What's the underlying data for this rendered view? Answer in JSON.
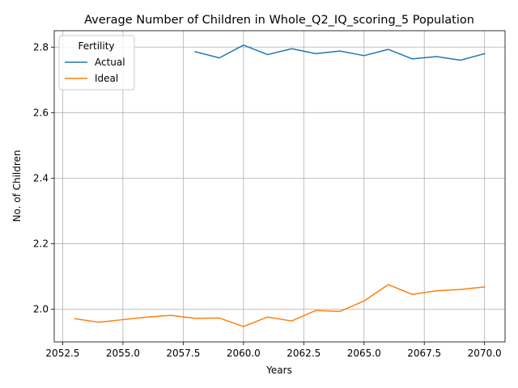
{
  "chart_data": {
    "type": "line",
    "title": "Average Number of Children in Whole_Q2_IQ_scoring_5 Population",
    "xlabel": "Years",
    "ylabel": "No. of Children",
    "xlim": [
      2052.15,
      2070.85
    ],
    "ylim": [
      1.9,
      2.85
    ],
    "xticks": [
      2052.5,
      2055.0,
      2057.5,
      2060.0,
      2062.5,
      2065.0,
      2067.5,
      2070.0
    ],
    "xtick_labels": [
      "2052.5",
      "2055.0",
      "2057.5",
      "2060.0",
      "2062.5",
      "2065.0",
      "2067.5",
      "2070.0"
    ],
    "yticks": [
      2.0,
      2.2,
      2.4,
      2.6,
      2.8
    ],
    "ytick_labels": [
      "2.0",
      "2.2",
      "2.4",
      "2.6",
      "2.8"
    ],
    "grid": true,
    "legend": {
      "title": "Fertility",
      "placement": "top-left"
    },
    "series": [
      {
        "name": "Actual",
        "color": "#1f77b4",
        "x": [
          2058,
          2059,
          2060,
          2061,
          2062,
          2063,
          2064,
          2065,
          2066,
          2067,
          2068,
          2069,
          2070
        ],
        "y": [
          2.786,
          2.767,
          2.806,
          2.777,
          2.795,
          2.78,
          2.788,
          2.774,
          2.793,
          2.764,
          2.771,
          2.76,
          2.78
        ]
      },
      {
        "name": "Ideal",
        "color": "#ff7f0e",
        "x": [
          2053,
          2054,
          2055,
          2056,
          2057,
          2058,
          2059,
          2060,
          2061,
          2062,
          2063,
          2064,
          2065,
          2066,
          2067,
          2068,
          2069,
          2070
        ],
        "y": [
          1.971,
          1.96,
          1.968,
          1.976,
          1.981,
          1.972,
          1.973,
          1.947,
          1.976,
          1.964,
          1.996,
          1.993,
          2.025,
          2.075,
          2.045,
          2.056,
          2.06,
          2.068
        ]
      }
    ]
  }
}
